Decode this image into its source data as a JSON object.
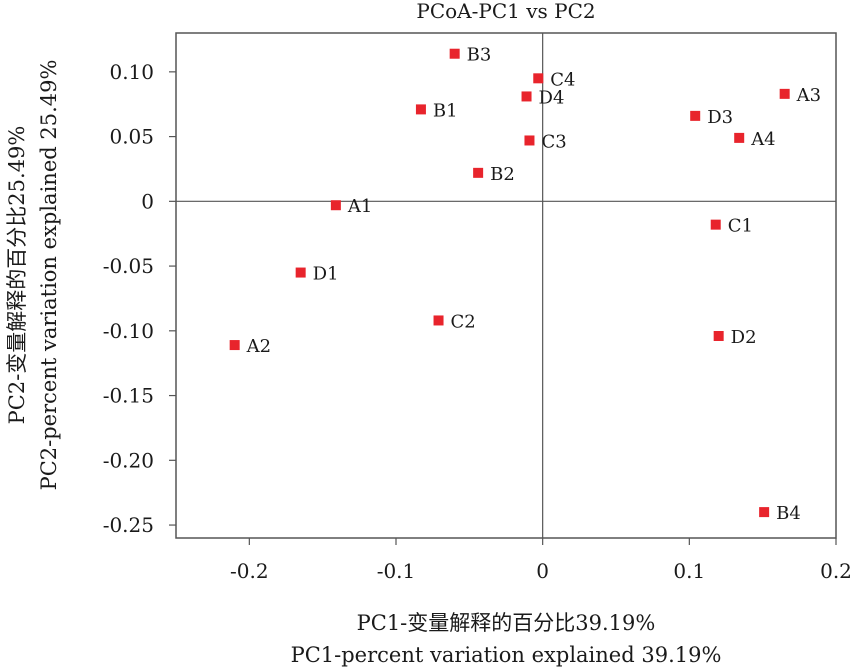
{
  "chart_data": {
    "type": "scatter",
    "title": "PCoA-PC1 vs PC2",
    "xlabel_cn": "PC1-变量解释的百分比39.19%",
    "xlabel_en": "PC1-percent variation explained 39.19%",
    "ylabel_cn": "PC2-变量解释的百分比25.49%",
    "ylabel_en": "PC2-percent variation explained 25.49%",
    "xlim": [
      -0.25,
      0.2
    ],
    "ylim": [
      -0.26,
      0.13
    ],
    "xticks": [
      -0.2,
      -0.1,
      0,
      0.1,
      0.2
    ],
    "xtick_labels": [
      "-0.2",
      "-0.1",
      "0",
      "0.1",
      "0.2"
    ],
    "yticks": [
      0.1,
      0.05,
      0,
      -0.05,
      -0.1,
      -0.15,
      -0.2,
      -0.25
    ],
    "ytick_labels": [
      "0.10",
      "0.05",
      "0",
      "-0.05",
      "-0.10",
      "-0.15",
      "-0.20",
      "-0.25"
    ],
    "reference_lines": {
      "x": 0,
      "y": 0
    },
    "marker_color": "#e8242c",
    "points": [
      {
        "label": "B3",
        "x": -0.06,
        "y": 0.114
      },
      {
        "label": "C4",
        "x": -0.003,
        "y": 0.095
      },
      {
        "label": "D4",
        "x": -0.011,
        "y": 0.081
      },
      {
        "label": "A3",
        "x": 0.165,
        "y": 0.083
      },
      {
        "label": "B1",
        "x": -0.083,
        "y": 0.071
      },
      {
        "label": "D3",
        "x": 0.104,
        "y": 0.066
      },
      {
        "label": "A4",
        "x": 0.134,
        "y": 0.049
      },
      {
        "label": "C3",
        "x": -0.009,
        "y": 0.047
      },
      {
        "label": "B2",
        "x": -0.044,
        "y": 0.022
      },
      {
        "label": "A1",
        "x": -0.141,
        "y": -0.003
      },
      {
        "label": "C1",
        "x": 0.118,
        "y": -0.018
      },
      {
        "label": "D1",
        "x": -0.165,
        "y": -0.055
      },
      {
        "label": "C2",
        "x": -0.071,
        "y": -0.092
      },
      {
        "label": "D2",
        "x": 0.12,
        "y": -0.104
      },
      {
        "label": "A2",
        "x": -0.21,
        "y": -0.111
      },
      {
        "label": "B4",
        "x": 0.151,
        "y": -0.24
      }
    ]
  }
}
